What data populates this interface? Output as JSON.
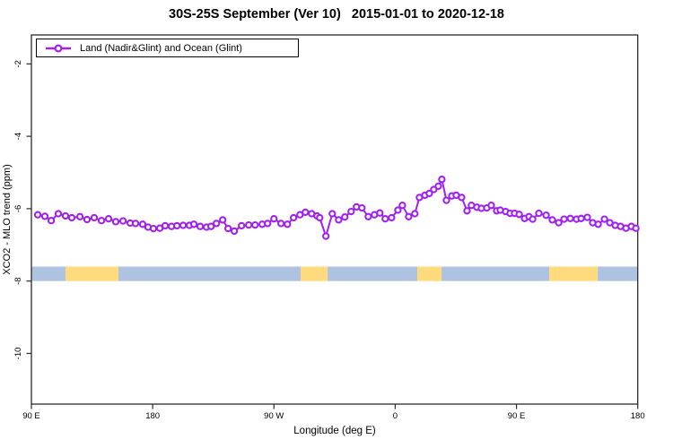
{
  "title": "30S-25S September (Ver 10)   2015-01-01 to 2020-12-18",
  "legend": {
    "label": "Land (Nadir&Glint) and Ocean (Glint)"
  },
  "axes": {
    "x_label": "Longitude (deg E)",
    "y_label": "XCO2 - MLO trend (ppm)"
  },
  "colors": {
    "series": "#A020F0",
    "marker_fill": "#ffffff",
    "ocean_band": "#AEC3E1",
    "land_band": "#FFDB7E",
    "axis": "#2b2b2b"
  },
  "chart_data": {
    "type": "line",
    "title": "30S-25S September (Ver 10)   2015-01-01 to 2020-12-18",
    "xlabel": "Longitude (deg E)",
    "ylabel": "XCO2 - MLO trend (ppm)",
    "xlim": [
      90,
      540
    ],
    "ylim": [
      -11.4,
      -1.2
    ],
    "grid": false,
    "legend_position": "top-left",
    "x_ticks": [
      {
        "lon": 90,
        "label": "90 E"
      },
      {
        "lon": 180,
        "label": "180"
      },
      {
        "lon": 270,
        "label": "90 W"
      },
      {
        "lon": 360,
        "label": "0"
      },
      {
        "lon": 450,
        "label": "90 E"
      },
      {
        "lon": 540,
        "label": "180"
      }
    ],
    "y_ticks": [
      {
        "value": -2,
        "label": "-2"
      },
      {
        "value": -4,
        "label": "-4"
      },
      {
        "value": -6,
        "label": "-6"
      },
      {
        "value": -8,
        "label": "-8"
      },
      {
        "value": -10,
        "label": "-10"
      }
    ],
    "surface_band": {
      "description": "land/ocean strip along latitude circle",
      "y_range_ppm": [
        -8.0,
        -7.6
      ],
      "segments": [
        {
          "from": 90.0,
          "to": 115.3,
          "type": "ocean"
        },
        {
          "from": 115.3,
          "to": 154.6,
          "type": "land"
        },
        {
          "from": 154.6,
          "to": 289.8,
          "type": "ocean"
        },
        {
          "from": 289.8,
          "to": 309.8,
          "type": "land"
        },
        {
          "from": 309.8,
          "to": 376.4,
          "type": "ocean"
        },
        {
          "from": 376.4,
          "to": 394.4,
          "type": "land"
        },
        {
          "from": 394.4,
          "to": 474.3,
          "type": "ocean"
        },
        {
          "from": 474.3,
          "to": 510.3,
          "type": "land"
        },
        {
          "from": 510.3,
          "to": 540.0,
          "type": "ocean"
        }
      ]
    },
    "series": [
      {
        "name": "Land (Nadir&Glint) and Ocean (Glint)",
        "color": "#A020F0",
        "marker": "open-circle",
        "points": [
          [
            94.7,
            -6.17
          ],
          [
            100.0,
            -6.21
          ],
          [
            104.7,
            -6.33
          ],
          [
            110.0,
            -6.14
          ],
          [
            115.3,
            -6.2
          ],
          [
            120.0,
            -6.25
          ],
          [
            126.0,
            -6.22
          ],
          [
            131.3,
            -6.3
          ],
          [
            136.6,
            -6.25
          ],
          [
            142.0,
            -6.33
          ],
          [
            147.3,
            -6.28
          ],
          [
            152.6,
            -6.36
          ],
          [
            158.0,
            -6.34
          ],
          [
            163.3,
            -6.4
          ],
          [
            167.3,
            -6.41
          ],
          [
            172.6,
            -6.43
          ],
          [
            176.6,
            -6.51
          ],
          [
            180.6,
            -6.55
          ],
          [
            185.3,
            -6.54
          ],
          [
            189.3,
            -6.47
          ],
          [
            194.0,
            -6.49
          ],
          [
            198.0,
            -6.47
          ],
          [
            202.6,
            -6.46
          ],
          [
            207.3,
            -6.46
          ],
          [
            210.6,
            -6.43
          ],
          [
            215.3,
            -6.49
          ],
          [
            220.0,
            -6.51
          ],
          [
            223.3,
            -6.49
          ],
          [
            227.3,
            -6.41
          ],
          [
            232.0,
            -6.31
          ],
          [
            236.0,
            -6.55
          ],
          [
            240.6,
            -6.62
          ],
          [
            246.0,
            -6.47
          ],
          [
            251.3,
            -6.45
          ],
          [
            256.0,
            -6.45
          ],
          [
            261.3,
            -6.43
          ],
          [
            265.3,
            -6.41
          ],
          [
            270.0,
            -6.28
          ],
          [
            275.3,
            -6.41
          ],
          [
            280.0,
            -6.43
          ],
          [
            284.6,
            -6.25
          ],
          [
            289.3,
            -6.17
          ],
          [
            293.3,
            -6.1
          ],
          [
            298.0,
            -6.14
          ],
          [
            302.0,
            -6.2
          ],
          [
            304.0,
            -6.25
          ],
          [
            308.6,
            -6.76
          ],
          [
            313.3,
            -6.14
          ],
          [
            318.0,
            -6.31
          ],
          [
            322.6,
            -6.23
          ],
          [
            327.3,
            -6.08
          ],
          [
            331.3,
            -5.95
          ],
          [
            335.3,
            -5.98
          ],
          [
            340.0,
            -6.22
          ],
          [
            344.6,
            -6.17
          ],
          [
            348.6,
            -6.12
          ],
          [
            352.6,
            -6.28
          ],
          [
            357.3,
            -6.25
          ],
          [
            362.0,
            -6.04
          ],
          [
            365.3,
            -5.91
          ],
          [
            370.0,
            -6.22
          ],
          [
            374.6,
            -6.14
          ],
          [
            378.0,
            -5.69
          ],
          [
            382.0,
            -5.63
          ],
          [
            385.3,
            -5.58
          ],
          [
            388.6,
            -5.47
          ],
          [
            392.0,
            -5.38
          ],
          [
            394.6,
            -5.19
          ],
          [
            398.0,
            -5.77
          ],
          [
            402.0,
            -5.65
          ],
          [
            405.3,
            -5.63
          ],
          [
            409.3,
            -5.69
          ],
          [
            413.3,
            -6.06
          ],
          [
            416.6,
            -5.91
          ],
          [
            420.6,
            -5.96
          ],
          [
            424.0,
            -5.99
          ],
          [
            428.0,
            -5.98
          ],
          [
            431.3,
            -5.91
          ],
          [
            435.3,
            -6.06
          ],
          [
            438.0,
            -6.04
          ],
          [
            442.0,
            -6.08
          ],
          [
            445.3,
            -6.13
          ],
          [
            448.6,
            -6.13
          ],
          [
            452.0,
            -6.16
          ],
          [
            456.0,
            -6.27
          ],
          [
            459.3,
            -6.22
          ],
          [
            462.0,
            -6.29
          ],
          [
            466.6,
            -6.13
          ],
          [
            472.0,
            -6.18
          ],
          [
            476.6,
            -6.31
          ],
          [
            481.3,
            -6.39
          ],
          [
            485.3,
            -6.29
          ],
          [
            490.0,
            -6.27
          ],
          [
            494.6,
            -6.29
          ],
          [
            498.0,
            -6.27
          ],
          [
            502.6,
            -6.24
          ],
          [
            506.6,
            -6.39
          ],
          [
            510.6,
            -6.43
          ],
          [
            515.3,
            -6.29
          ],
          [
            519.3,
            -6.39
          ],
          [
            523.3,
            -6.46
          ],
          [
            527.3,
            -6.49
          ],
          [
            531.3,
            -6.54
          ],
          [
            535.3,
            -6.49
          ],
          [
            538.6,
            -6.54
          ]
        ]
      }
    ]
  }
}
